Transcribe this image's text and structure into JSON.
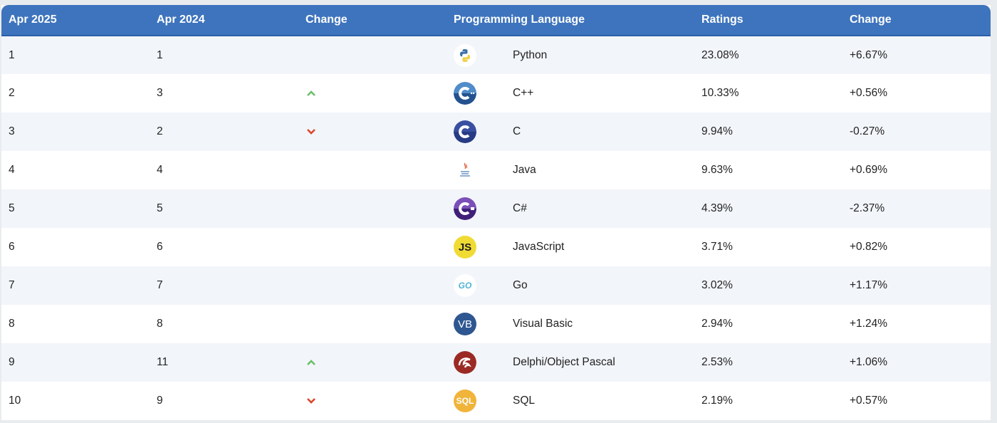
{
  "table": {
    "headers": [
      "Apr 2025",
      "Apr 2024",
      "Change",
      "Programming Language",
      "Ratings",
      "Change"
    ],
    "rows": [
      {
        "rank_2025": "1",
        "rank_2024": "1",
        "trend": "none",
        "icon": "python-icon",
        "language": "Python",
        "rating": "23.08%",
        "change": "+6.67%"
      },
      {
        "rank_2025": "2",
        "rank_2024": "3",
        "trend": "up",
        "icon": "cplusplus-icon",
        "language": "C++",
        "rating": "10.33%",
        "change": "+0.56%"
      },
      {
        "rank_2025": "3",
        "rank_2024": "2",
        "trend": "down",
        "icon": "c-icon",
        "language": "C",
        "rating": "9.94%",
        "change": "-0.27%"
      },
      {
        "rank_2025": "4",
        "rank_2024": "4",
        "trend": "none",
        "icon": "java-icon",
        "language": "Java",
        "rating": "9.63%",
        "change": "+0.69%"
      },
      {
        "rank_2025": "5",
        "rank_2024": "5",
        "trend": "none",
        "icon": "csharp-icon",
        "language": "C#",
        "rating": "4.39%",
        "change": "-2.37%"
      },
      {
        "rank_2025": "6",
        "rank_2024": "6",
        "trend": "none",
        "icon": "javascript-icon",
        "language": "JavaScript",
        "rating": "3.71%",
        "change": "+0.82%"
      },
      {
        "rank_2025": "7",
        "rank_2024": "7",
        "trend": "none",
        "icon": "go-icon",
        "language": "Go",
        "rating": "3.02%",
        "change": "+1.17%"
      },
      {
        "rank_2025": "8",
        "rank_2024": "8",
        "trend": "none",
        "icon": "visual-basic-icon",
        "language": "Visual Basic",
        "rating": "2.94%",
        "change": "+1.24%"
      },
      {
        "rank_2025": "9",
        "rank_2024": "11",
        "trend": "up",
        "icon": "delphi-icon",
        "language": "Delphi/Object Pascal",
        "rating": "2.53%",
        "change": "+1.06%"
      },
      {
        "rank_2025": "10",
        "rank_2024": "9",
        "trend": "down",
        "icon": "sql-icon",
        "language": "SQL",
        "rating": "2.19%",
        "change": "+0.57%"
      }
    ]
  },
  "icons": {
    "js_label": "JS",
    "vb_label": "VB",
    "sql_label": "SQL",
    "go_label": "GO"
  },
  "colors": {
    "header_bg": "#3e74bd",
    "row_alt": "#f2f5fa",
    "trend_up": "#6cbf6a",
    "trend_down": "#d9472b"
  }
}
